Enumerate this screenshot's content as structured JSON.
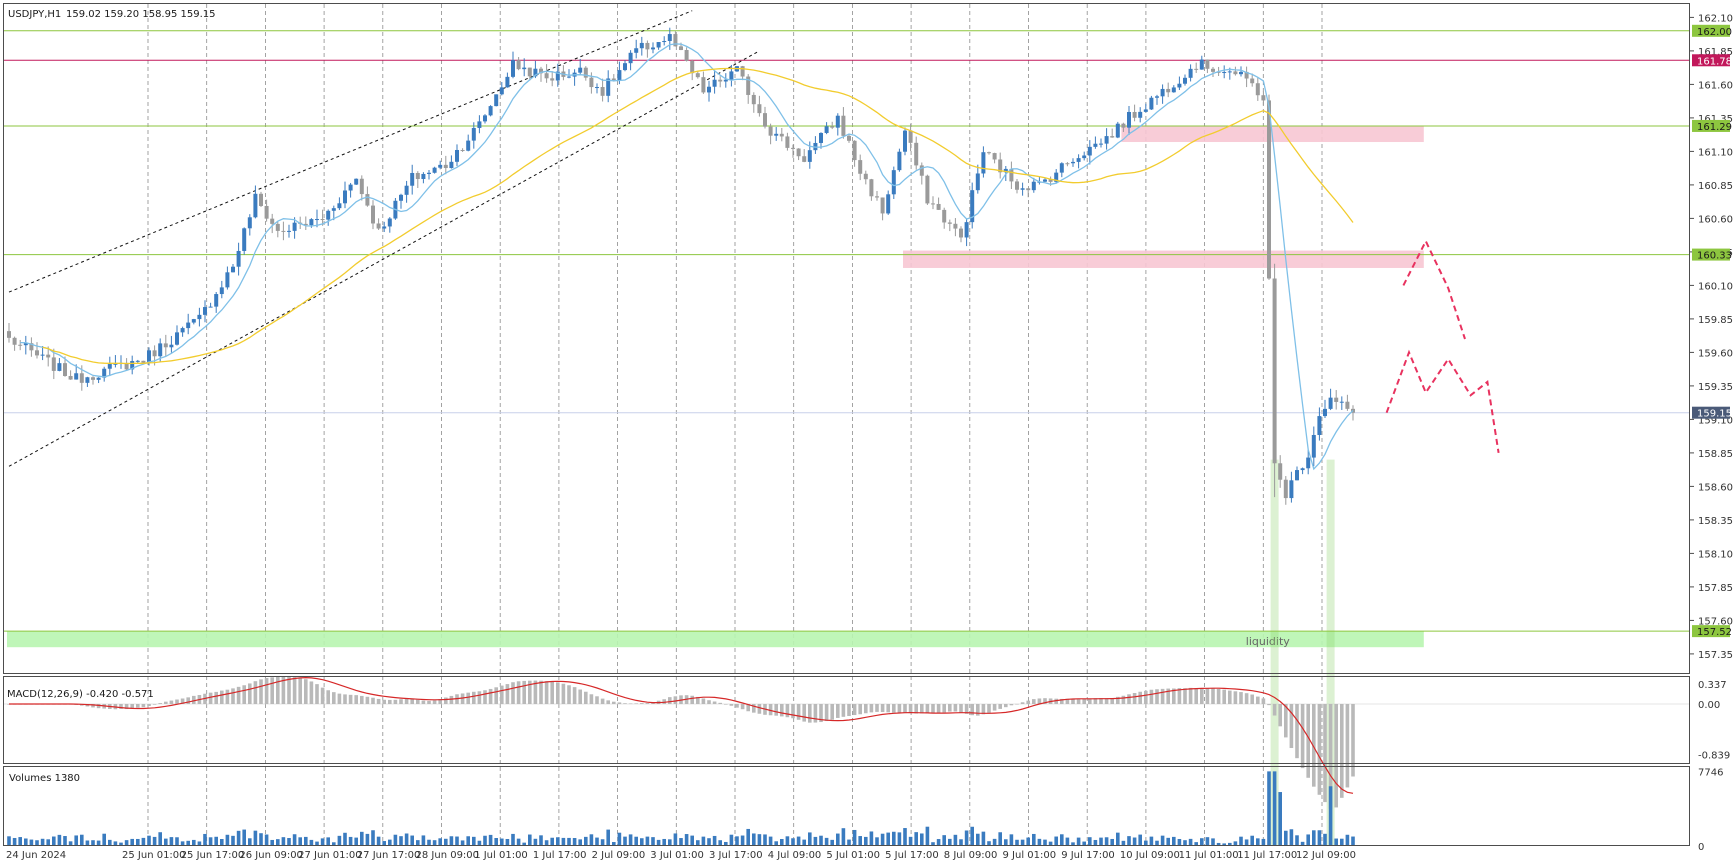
{
  "header": {
    "symbol": "USDJPY,H1",
    "ohlc": "159.02 159.20 158.95 159.15"
  },
  "colors": {
    "bull": "#3a7bbf",
    "bear": "#9a9a9a",
    "ma_fast": "#7fc0e8",
    "ma_slow": "#f2cc2e",
    "hline_green": "#8dc63f",
    "hline_red": "#c2185b",
    "zone_pink": "#f7c7d3",
    "zone_green": "#b8f5b0",
    "projection": "#e8325f",
    "macd_signal": "#d62828",
    "grid": "#8c8c8c"
  },
  "chart_data": [
    {
      "type": "candlestick",
      "panel": "price",
      "y_ticks": [
        "162.10",
        "161.85",
        "161.60",
        "161.35",
        "161.10",
        "160.85",
        "160.60",
        "160.35",
        "160.10",
        "159.85",
        "159.60",
        "159.35",
        "159.10",
        "158.85",
        "158.60",
        "158.35",
        "158.10",
        "157.85",
        "157.60",
        "157.35"
      ],
      "ylim": [
        157.2,
        162.2
      ],
      "x_ticks": [
        "24 Jun 2024",
        "25 Jun 01:00",
        "25 Jun 17:00",
        "26 Jun 09:00",
        "27 Jun 01:00",
        "27 Jun 17:00",
        "28 Jun 09:00",
        "1 Jul 01:00",
        "1 Jul 17:00",
        "2 Jul 09:00",
        "3 Jul 01:00",
        "3 Jul 17:00",
        "4 Jul 09:00",
        "5 Jul 01:00",
        "5 Jul 17:00",
        "8 Jul 09:00",
        "9 Jul 01:00",
        "9 Jul 17:00",
        "10 Jul 09:00",
        "11 Jul 01:00",
        "11 Jul 17:00",
        "12 Jul 09:00"
      ],
      "anchors": [
        [
          0,
          159.7
        ],
        [
          12,
          159.4
        ],
        [
          24,
          159.55
        ],
        [
          34,
          159.85
        ],
        [
          40,
          160.25
        ],
        [
          44,
          160.75
        ],
        [
          48,
          160.5
        ],
        [
          56,
          160.6
        ],
        [
          62,
          160.9
        ],
        [
          66,
          160.5
        ],
        [
          72,
          160.9
        ],
        [
          78,
          161.0
        ],
        [
          84,
          161.3
        ],
        [
          90,
          161.75
        ],
        [
          96,
          161.65
        ],
        [
          102,
          161.7
        ],
        [
          106,
          161.55
        ],
        [
          112,
          161.85
        ],
        [
          118,
          161.95
        ],
        [
          124,
          161.55
        ],
        [
          130,
          161.7
        ],
        [
          136,
          161.25
        ],
        [
          142,
          161.05
        ],
        [
          148,
          161.35
        ],
        [
          152,
          160.95
        ],
        [
          156,
          160.65
        ],
        [
          160,
          161.25
        ],
        [
          164,
          160.75
        ],
        [
          170,
          160.45
        ],
        [
          174,
          161.1
        ],
        [
          180,
          160.85
        ],
        [
          184,
          160.85
        ],
        [
          190,
          161.05
        ],
        [
          196,
          161.2
        ],
        [
          200,
          161.35
        ],
        [
          206,
          161.55
        ],
        [
          212,
          161.75
        ],
        [
          218,
          161.7
        ],
        [
          222,
          161.6
        ],
        [
          224,
          161.5
        ],
        [
          226,
          158.75
        ],
        [
          228,
          158.55
        ],
        [
          232,
          158.85
        ],
        [
          234,
          159.15
        ],
        [
          236,
          159.25
        ],
        [
          240,
          159.15
        ]
      ],
      "price_levels": [
        {
          "label": "162.00",
          "value": 162.0,
          "color": "#8dc63f"
        },
        {
          "label": "161.78",
          "value": 161.78,
          "color": "#c2185b"
        },
        {
          "label": "161.29",
          "value": 161.29,
          "color": "#8dc63f"
        },
        {
          "label": "160.33",
          "value": 160.33,
          "color": "#8dc63f"
        },
        {
          "label": "157.52",
          "value": 157.52,
          "color": "#8dc63f"
        }
      ],
      "current_price": {
        "label": "159.15",
        "value": 159.15
      },
      "zones": [
        {
          "from_bar": 199,
          "to_bar": 253,
          "top": 161.29,
          "bottom": 161.17
        },
        {
          "from_bar": 160,
          "to_bar": 253,
          "top": 160.36,
          "bottom": 160.23
        },
        {
          "from_bar": 0,
          "to_bar": 253,
          "top": 157.52,
          "bottom": 157.4,
          "label": "liquidity"
        }
      ],
      "channel": {
        "upper": [
          [
            0,
            160.05
          ],
          [
            122,
            162.15
          ]
        ],
        "lower": [
          [
            0,
            158.75
          ],
          [
            134,
            161.85
          ]
        ]
      },
      "projections": [
        [
          [
            249,
            160.1
          ],
          [
            253,
            160.43
          ],
          [
            257,
            160.08
          ],
          [
            260,
            159.7
          ]
        ],
        [
          [
            246,
            159.15
          ],
          [
            250,
            159.6
          ],
          [
            253,
            159.3
          ],
          [
            257,
            159.55
          ],
          [
            261,
            159.28
          ],
          [
            264,
            159.38
          ],
          [
            266,
            158.85
          ]
        ]
      ]
    },
    {
      "type": "bar",
      "panel": "macd",
      "label": "MACD(12,26,9) -0.420 -0.571",
      "y_ticks": [
        "0.337",
        "0.00",
        "-0.839"
      ],
      "ylim": [
        -1.0,
        0.45
      ]
    },
    {
      "type": "bar",
      "panel": "volume",
      "label": "Volumes 1380",
      "y_ticks": [
        "7746",
        "0"
      ],
      "ylim": [
        0,
        8200
      ]
    }
  ]
}
